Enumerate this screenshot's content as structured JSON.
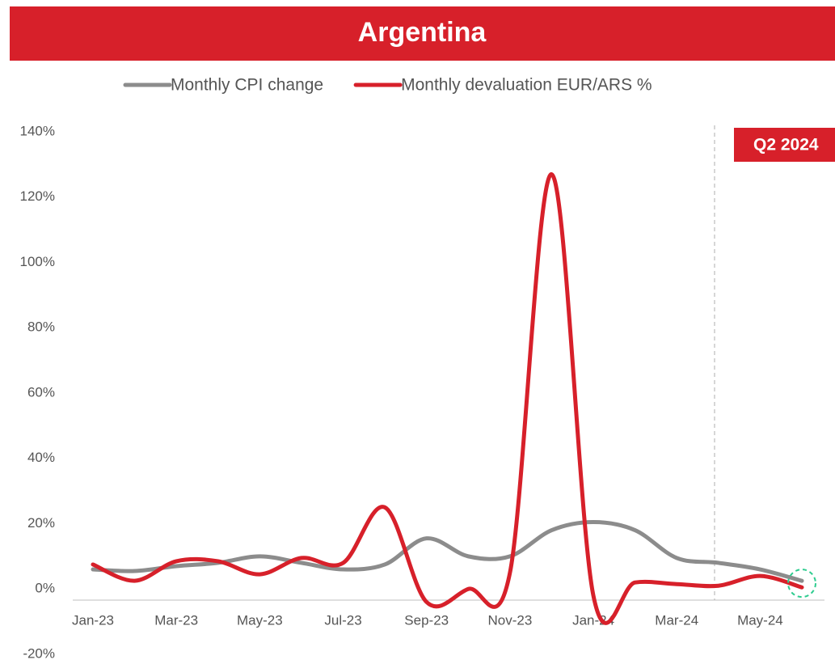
{
  "chart_data": {
    "type": "line",
    "title": "Argentina",
    "categories": [
      "Jan-23",
      null,
      "Mar-23",
      null,
      "May-23",
      null,
      "Jul-23",
      null,
      "Sep-23",
      null,
      "Nov-23",
      null,
      "Jan-24",
      null,
      "Mar-24",
      null,
      "May-24",
      null
    ],
    "series": [
      {
        "name": "Monthly CPI change",
        "color": "#8c8c8c",
        "values": [
          6,
          5.5,
          7,
          8,
          10,
          8,
          6,
          7.5,
          15.5,
          10,
          10,
          18,
          20.5,
          18,
          9.5,
          8,
          6,
          2.5
        ]
      },
      {
        "name": "Monthly devaluation EUR/ARS %",
        "color": "#d7202a",
        "values": [
          7.5,
          2.5,
          8.5,
          8.5,
          4.5,
          9.5,
          8,
          25,
          -4,
          0,
          5,
          127,
          -2,
          2,
          1.5,
          1,
          4,
          0.5
        ]
      }
    ],
    "ylim": [
      -20,
      140
    ],
    "yticks": [
      {
        "value": -20,
        "label": "-20%"
      },
      {
        "value": 0,
        "label": "0%"
      },
      {
        "value": 20,
        "label": "20%"
      },
      {
        "value": 40,
        "label": "40%"
      },
      {
        "value": 60,
        "label": "60%"
      },
      {
        "value": 80,
        "label": "80%"
      },
      {
        "value": 100,
        "label": "100%"
      },
      {
        "value": 120,
        "label": "120%"
      },
      {
        "value": 140,
        "label": "140%"
      }
    ],
    "annotation": "Q2 2024",
    "legend": "top",
    "smooth": true,
    "grid": false
  }
}
